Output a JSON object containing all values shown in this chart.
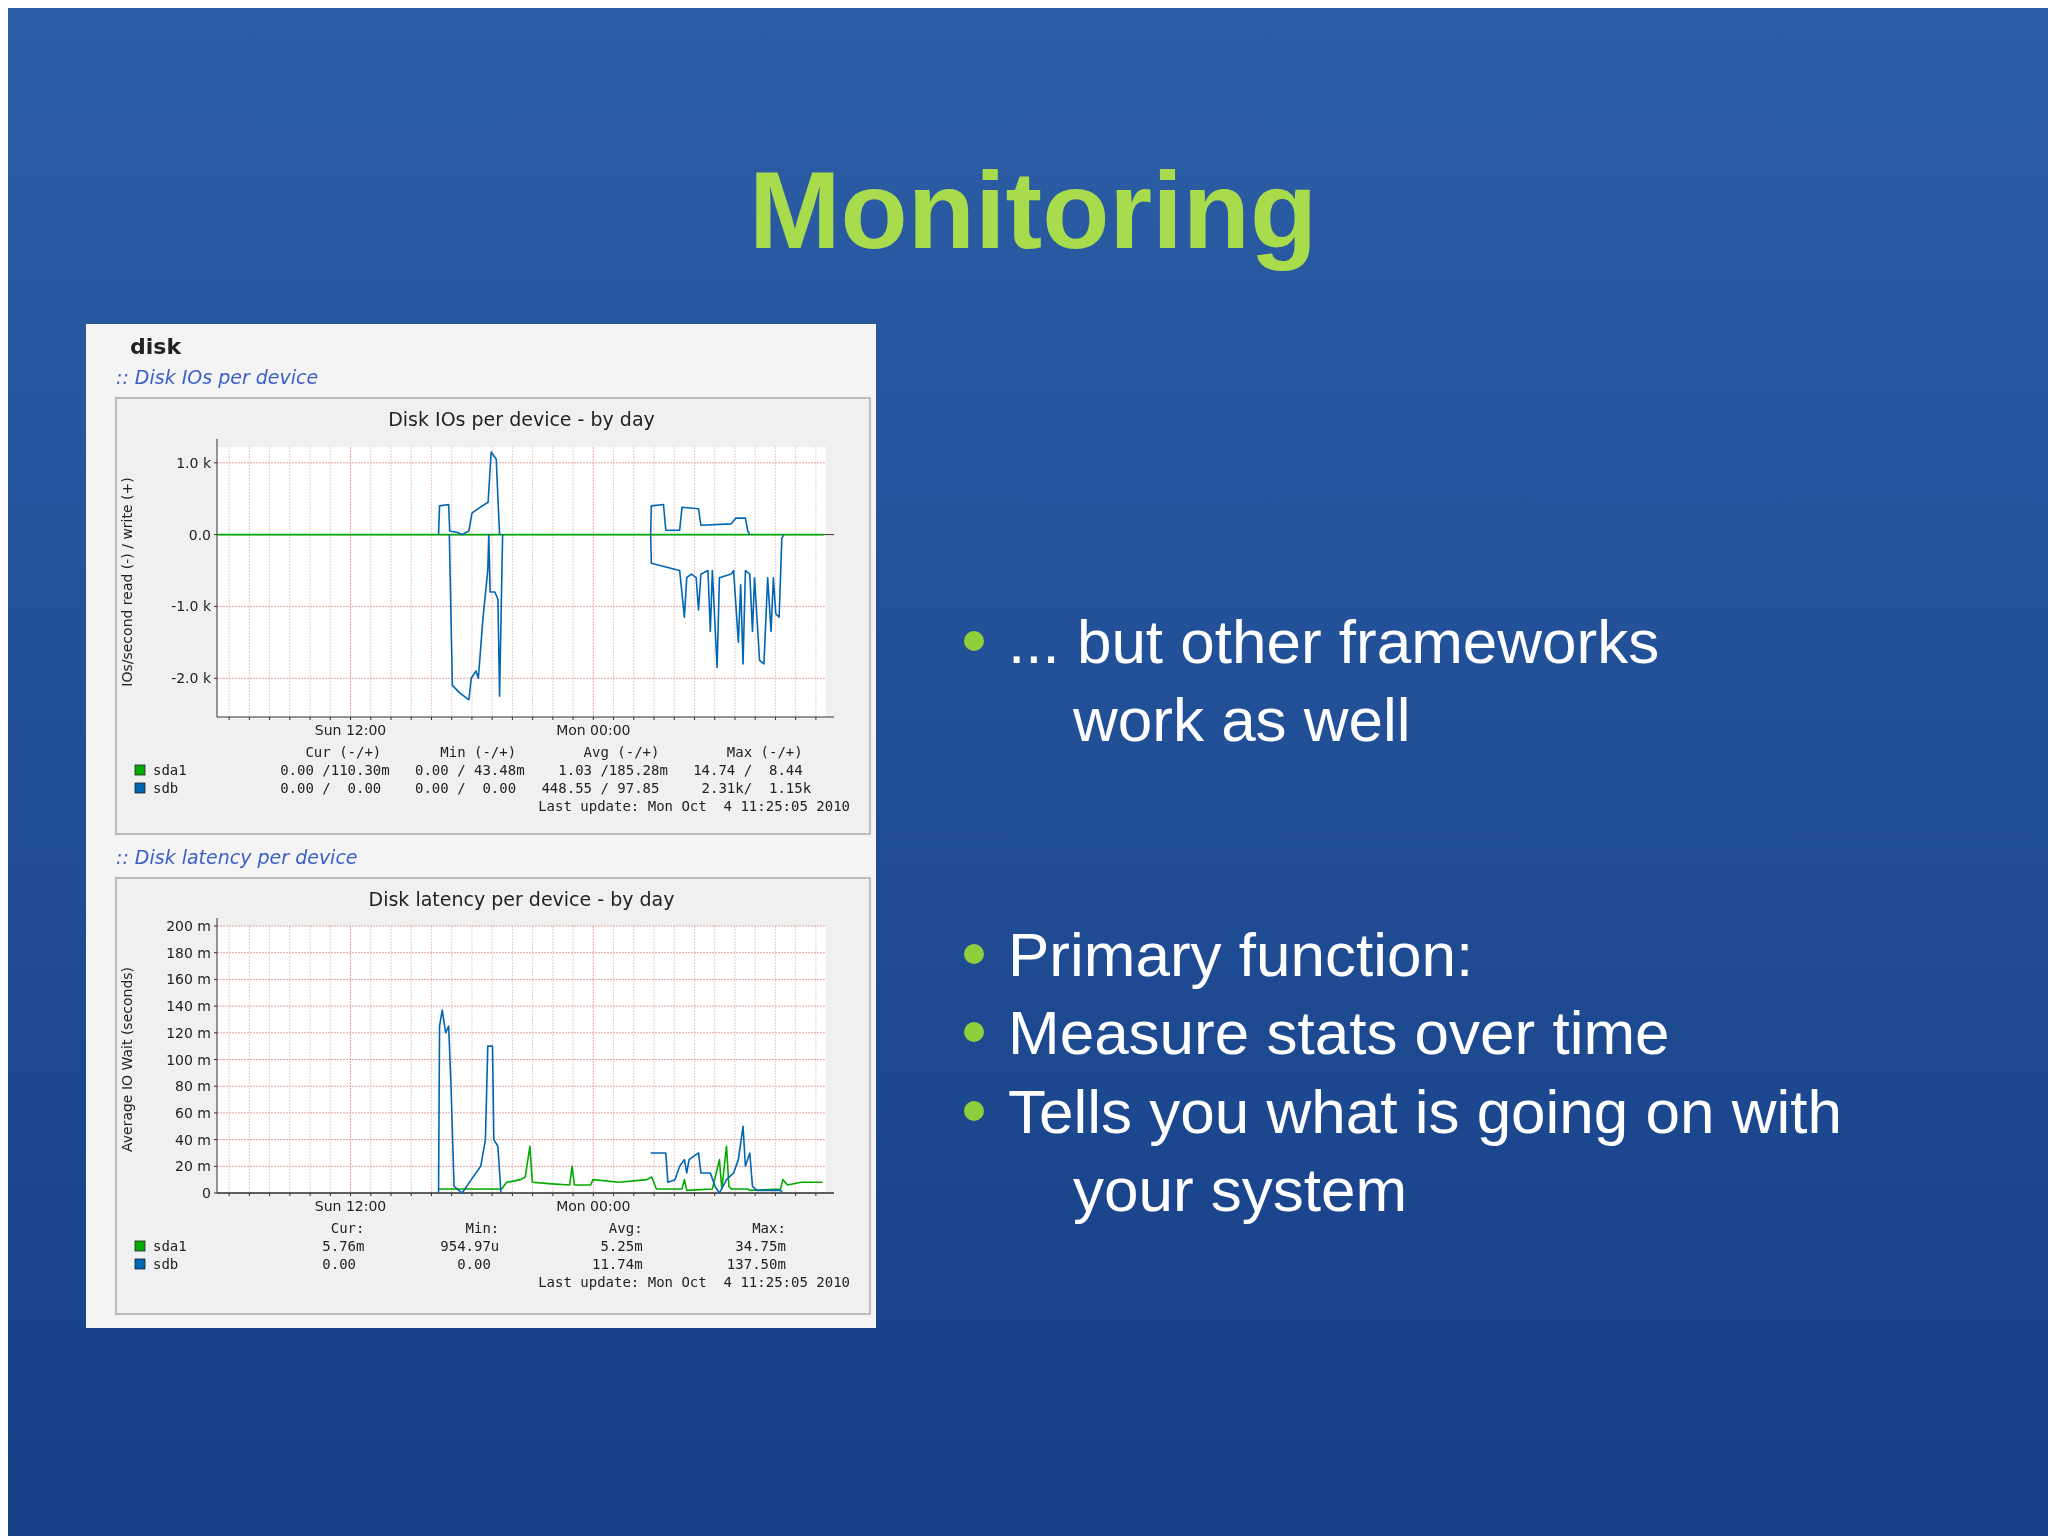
{
  "chart_data": [
    {
      "type": "line",
      "title": "Disk IOs per device - by day",
      "subtitle": ":: Disk IOs per device",
      "ylabel": "IOs/second read (-) / write (+)",
      "xlim": [
        "2010-10-03T05:24",
        "2010-10-04T11:30"
      ],
      "ylim": [
        -2540,
        1220
      ],
      "xticks": [
        {
          "value": "2010-10-03T06:00",
          "label": null
        },
        {
          "value": "2010-10-03T07:00",
          "label": null
        },
        {
          "value": "2010-10-03T08:00",
          "label": null
        },
        {
          "value": "2010-10-03T09:00",
          "label": null
        },
        {
          "value": "2010-10-03T10:00",
          "label": null
        },
        {
          "value": "2010-10-03T11:00",
          "label": null
        },
        {
          "value": "2010-10-03T12:00",
          "label": "Sun 12:00"
        },
        {
          "value": "2010-10-03T13:00",
          "label": null
        },
        {
          "value": "2010-10-03T14:00",
          "label": null
        },
        {
          "value": "2010-10-03T15:00",
          "label": null
        },
        {
          "value": "2010-10-03T16:00",
          "label": null
        },
        {
          "value": "2010-10-03T17:00",
          "label": null
        },
        {
          "value": "2010-10-03T18:00",
          "label": null
        },
        {
          "value": "2010-10-03T19:00",
          "label": null
        },
        {
          "value": "2010-10-03T20:00",
          "label": null
        },
        {
          "value": "2010-10-03T21:00",
          "label": null
        },
        {
          "value": "2010-10-03T22:00",
          "label": null
        },
        {
          "value": "2010-10-03T23:00",
          "label": null
        },
        {
          "value": "2010-10-04T00:00",
          "label": "Mon 00:00"
        },
        {
          "value": "2010-10-04T01:00",
          "label": null
        },
        {
          "value": "2010-10-04T02:00",
          "label": null
        },
        {
          "value": "2010-10-04T03:00",
          "label": null
        },
        {
          "value": "2010-10-04T04:00",
          "label": null
        },
        {
          "value": "2010-10-04T05:00",
          "label": null
        },
        {
          "value": "2010-10-04T06:00",
          "label": null
        },
        {
          "value": "2010-10-04T07:00",
          "label": null
        },
        {
          "value": "2010-10-04T08:00",
          "label": null
        },
        {
          "value": "2010-10-04T09:00",
          "label": null
        },
        {
          "value": "2010-10-04T10:00",
          "label": null
        },
        {
          "value": "2010-10-04T11:00",
          "label": null
        }
      ],
      "yticks": [
        {
          "value": -2000,
          "label": "-2.0 k"
        },
        {
          "value": -1000,
          "label": "-1.0 k"
        },
        {
          "value": 0,
          "label": "0.0"
        },
        {
          "value": 1000,
          "label": "1.0 k"
        }
      ],
      "grid": true,
      "legend": "bottom left",
      "marker": "none",
      "line_style": "solid",
      "series": [
        {
          "name": "sda1",
          "color": "#00aa00",
          "x": [
            "2010-10-03T05:24",
            "2010-10-04T11:24"
          ],
          "values": [
            0,
            0
          ]
        },
        {
          "name": "sdb",
          "color": "#0066b3",
          "x": [
            "2010-10-03T16:21",
            "2010-10-03T16:24",
            "2010-10-03T16:51",
            "2010-10-03T16:54",
            "2010-10-03T17:18",
            "2010-10-03T17:30",
            "2010-10-03T17:51",
            "2010-10-03T18:00",
            "2010-10-03T18:24",
            "2010-10-03T18:48",
            "2010-10-03T18:57",
            "2010-10-03T19:12",
            "2010-10-03T19:22",
            "2010-10-03T19:24",
            "2010-10-04T02:50",
            "2010-10-04T02:52",
            "2010-10-04T03:28",
            "2010-10-04T03:35",
            "2010-10-04T04:16",
            "2010-10-04T04:23",
            "2010-10-04T05:12",
            "2010-10-04T05:19",
            "2010-10-04T06:49",
            "2010-10-04T07:03",
            "2010-10-04T07:31",
            "2010-10-04T07:38",
            "2010-10-04T07:44"
          ],
          "values": [
            0,
            400,
            420,
            50,
            30,
            0,
            50,
            300,
            380,
            450,
            1150,
            1050,
            0,
            null,
            0,
            400,
            420,
            60,
            60,
            380,
            360,
            130,
            150,
            230,
            230,
            50,
            0
          ]
        },
        {
          "color": "#0066b3",
          "x": [
            "2010-10-03T16:53",
            "2010-10-03T17:02",
            "2010-10-03T17:23",
            "2010-10-03T17:51",
            "2010-10-03T17:58",
            "2010-10-03T18:12",
            "2010-10-03T18:19",
            "2010-10-03T18:33",
            "2010-10-03T18:47",
            "2010-10-03T18:50",
            "2010-10-03T18:54",
            "2010-10-03T19:08",
            "2010-10-03T19:17",
            "2010-10-03T19:22",
            "2010-10-03T19:31",
            "2010-10-03T19:36",
            "2010-10-04T02:50",
            "2010-10-04T02:52",
            "2010-10-04T03:35",
            "2010-10-04T04:16",
            "2010-10-04T04:30",
            "2010-10-04T04:37",
            "2010-10-04T04:51",
            "2010-10-04T05:05",
            "2010-10-04T05:12",
            "2010-10-04T05:19",
            "2010-10-04T05:40",
            "2010-10-04T05:47",
            "2010-10-04T05:53",
            "2010-10-04T06:07",
            "2010-10-04T06:14",
            "2010-10-04T06:49",
            "2010-10-04T06:56",
            "2010-10-04T07:10",
            "2010-10-04T07:17",
            "2010-10-04T07:24",
            "2010-10-04T07:31",
            "2010-10-04T07:44",
            "2010-10-04T07:52",
            "2010-10-04T07:58",
            "2010-10-04T08:13",
            "2010-10-04T08:26",
            "2010-10-04T08:37",
            "2010-10-04T08:47",
            "2010-10-04T08:54",
            "2010-10-04T09:01",
            "2010-10-04T09:11",
            "2010-10-04T09:19",
            "2010-10-04T09:25"
          ],
          "values": [
            0,
            -2100,
            -2200,
            -2300,
            -2000,
            -1900,
            -2000,
            -1150,
            -500,
            0,
            -800,
            -800,
            -900,
            -2250,
            0,
            null,
            0,
            -400,
            -450,
            -500,
            -1150,
            -600,
            -550,
            -600,
            -1050,
            -550,
            -500,
            -1350,
            -500,
            -1850,
            -600,
            -550,
            -500,
            -1500,
            -700,
            -1800,
            -500,
            -550,
            -1350,
            -600,
            -1750,
            -1800,
            -600,
            -1350,
            -600,
            -1100,
            -1150,
            -50,
            0
          ]
        }
      ],
      "annotations": [
        "        Cur (-/+)       Min (-/+)        Avg (-/+)        Max (-/+)",
        "     0.00 /110.30m   0.00 / 43.48m    1.03 /185.28m   14.74 /  8.44",
        "     0.00 /  0.00    0.00 /  0.00   448.55 / 97.85     2.31k/  1.15k",
        "Last update: Mon Oct  4 11:25:05 2010",
        "disk"
      ]
    },
    {
      "type": "line",
      "title": "Disk latency per device - by day",
      "subtitle": ":: Disk latency per device",
      "ylabel": "Average IO Wait (seconds)",
      "xlim": [
        "2010-10-03T05:24",
        "2010-10-04T11:30"
      ],
      "ylim": [
        0,
        200
      ],
      "xticks": [
        {
          "value": "2010-10-03T06:00",
          "label": null
        },
        {
          "value": "2010-10-03T07:00",
          "label": null
        },
        {
          "value": "2010-10-03T08:00",
          "label": null
        },
        {
          "value": "2010-10-03T09:00",
          "label": null
        },
        {
          "value": "2010-10-03T10:00",
          "label": null
        },
        {
          "value": "2010-10-03T11:00",
          "label": null
        },
        {
          "value": "2010-10-03T12:00",
          "label": "Sun 12:00"
        },
        {
          "value": "2010-10-03T13:00",
          "label": null
        },
        {
          "value": "2010-10-03T14:00",
          "label": null
        },
        {
          "value": "2010-10-03T15:00",
          "label": null
        },
        {
          "value": "2010-10-03T16:00",
          "label": null
        },
        {
          "value": "2010-10-03T17:00",
          "label": null
        },
        {
          "value": "2010-10-03T18:00",
          "label": null
        },
        {
          "value": "2010-10-03T19:00",
          "label": null
        },
        {
          "value": "2010-10-03T20:00",
          "label": null
        },
        {
          "value": "2010-10-03T21:00",
          "label": null
        },
        {
          "value": "2010-10-03T22:00",
          "label": null
        },
        {
          "value": "2010-10-03T23:00",
          "label": null
        },
        {
          "value": "2010-10-04T00:00",
          "label": "Mon 00:00"
        },
        {
          "value": "2010-10-04T01:00",
          "label": null
        },
        {
          "value": "2010-10-04T02:00",
          "label": null
        },
        {
          "value": "2010-10-04T03:00",
          "label": null
        },
        {
          "value": "2010-10-04T04:00",
          "label": null
        },
        {
          "value": "2010-10-04T05:00",
          "label": null
        },
        {
          "value": "2010-10-04T06:00",
          "label": null
        },
        {
          "value": "2010-10-04T07:00",
          "label": null
        },
        {
          "value": "2010-10-04T08:00",
          "label": null
        },
        {
          "value": "2010-10-04T09:00",
          "label": null
        },
        {
          "value": "2010-10-04T10:00",
          "label": null
        },
        {
          "value": "2010-10-04T11:00",
          "label": null
        }
      ],
      "yticks": [
        0,
        {
          "value": 20,
          "label": "20 m"
        },
        {
          "value": 40,
          "label": "40 m"
        },
        {
          "value": 60,
          "label": "60 m"
        },
        {
          "value": 80,
          "label": "80 m"
        },
        {
          "value": 100,
          "label": "100 m"
        },
        {
          "value": 120,
          "label": "120 m"
        },
        {
          "value": 140,
          "label": "140 m"
        },
        {
          "value": 160,
          "label": "160 m"
        },
        {
          "value": 180,
          "label": "180 m"
        },
        {
          "value": 200,
          "label": "200 m"
        }
      ],
      "grid": true,
      "legend": "bottom left",
      "marker": "none",
      "line_style": "solid",
      "series": [
        {
          "name": "sda1",
          "color": "#00aa00",
          "x": [
            "2010-10-03T16:21",
            "2010-10-03T19:28",
            "2010-10-03T19:43",
            "2010-10-03T20:24",
            "2010-10-03T20:38",
            "2010-10-03T20:52",
            "2010-10-03T20:59",
            "2010-10-03T21:47",
            "2010-10-03T22:50",
            "2010-10-03T22:57",
            "2010-10-03T23:04",
            "2010-10-03T23:52",
            "2010-10-03T23:59",
            "2010-10-04T01:16",
            "2010-10-04T02:39",
            "2010-10-04T02:53",
            "2010-10-04T03:07",
            "2010-10-04T04:23",
            "2010-10-04T04:30",
            "2010-10-04T04:37",
            "2010-10-04T05:53",
            "2010-10-04T06:14",
            "2010-10-04T06:21",
            "2010-10-04T06:35",
            "2010-10-04T06:42",
            "2010-10-04T06:49",
            "2010-10-04T07:38",
            "2010-10-04T07:44",
            "2010-10-04T09:15",
            "2010-10-04T09:22",
            "2010-10-04T09:36",
            "2010-10-04T10:17",
            "2010-10-04T10:59",
            "2010-10-04T11:20"
          ],
          "values": [
            3,
            3,
            8,
            10,
            12,
            35,
            8,
            7,
            6,
            20,
            6,
            6,
            10,
            8,
            10,
            12,
            3,
            3,
            10,
            2,
            3,
            25,
            3,
            35,
            5,
            3,
            3,
            2,
            3,
            10,
            6,
            8,
            8,
            8
          ]
        },
        {
          "name": "sdb",
          "color": "#0066b3",
          "x": [
            "2010-10-03T16:21",
            "2010-10-03T16:24",
            "2010-10-03T16:32",
            "2010-10-03T16:42",
            "2010-10-03T16:51",
            "2010-10-03T16:58",
            "2010-10-03T17:07",
            "2010-10-03T17:31",
            "2010-10-03T17:58",
            "2010-10-03T18:26",
            "2010-10-03T18:40",
            "2010-10-03T18:47",
            "2010-10-03T19:01",
            "2010-10-03T19:05",
            "2010-10-03T19:17",
            "2010-10-03T19:26",
            "2010-10-03T19:30",
            "2010-10-04T02:50",
            "2010-10-04T03:35",
            "2010-10-04T03:41",
            "2010-10-04T04:02",
            "2010-10-04T04:16",
            "2010-10-04T04:30",
            "2010-10-04T04:37",
            "2010-10-04T04:44",
            "2010-10-04T05:12",
            "2010-10-04T05:19",
            "2010-10-04T05:47",
            "2010-10-04T06:01",
            "2010-10-04T06:14",
            "2010-10-04T06:35",
            "2010-10-04T06:56",
            "2010-10-04T07:10",
            "2010-10-04T07:24",
            "2010-10-04T07:31",
            "2010-10-04T07:44",
            "2010-10-04T07:52",
            "2010-10-04T08:05",
            "2010-10-04T09:15",
            "2010-10-04T09:22"
          ],
          "values": [
            0,
            125,
            137,
            120,
            125,
            80,
            5,
            0,
            10,
            20,
            40,
            110,
            110,
            40,
            35,
            0,
            null,
            30,
            30,
            8,
            10,
            20,
            25,
            15,
            25,
            30,
            15,
            15,
            5,
            0,
            10,
            15,
            25,
            50,
            20,
            30,
            5,
            2,
            2,
            0
          ]
        }
      ],
      "annotations": [
        "           Cur:            Min:             Avg:             Max:",
        "          5.76m         954.97u            5.25m           34.75m",
        "          0.00            0.00            11.74m          137.50m",
        "Last update: Mon Oct  4 11:25:05 2010"
      ]
    },
    {
      "type": "other",
      "title": "Monitoring",
      "annotations": [
        "... but other frameworks\nwork as well",
        "Primary function:",
        "Measure stats over time",
        "Tells you what is going on with\nyour system"
      ]
    }
  ]
}
